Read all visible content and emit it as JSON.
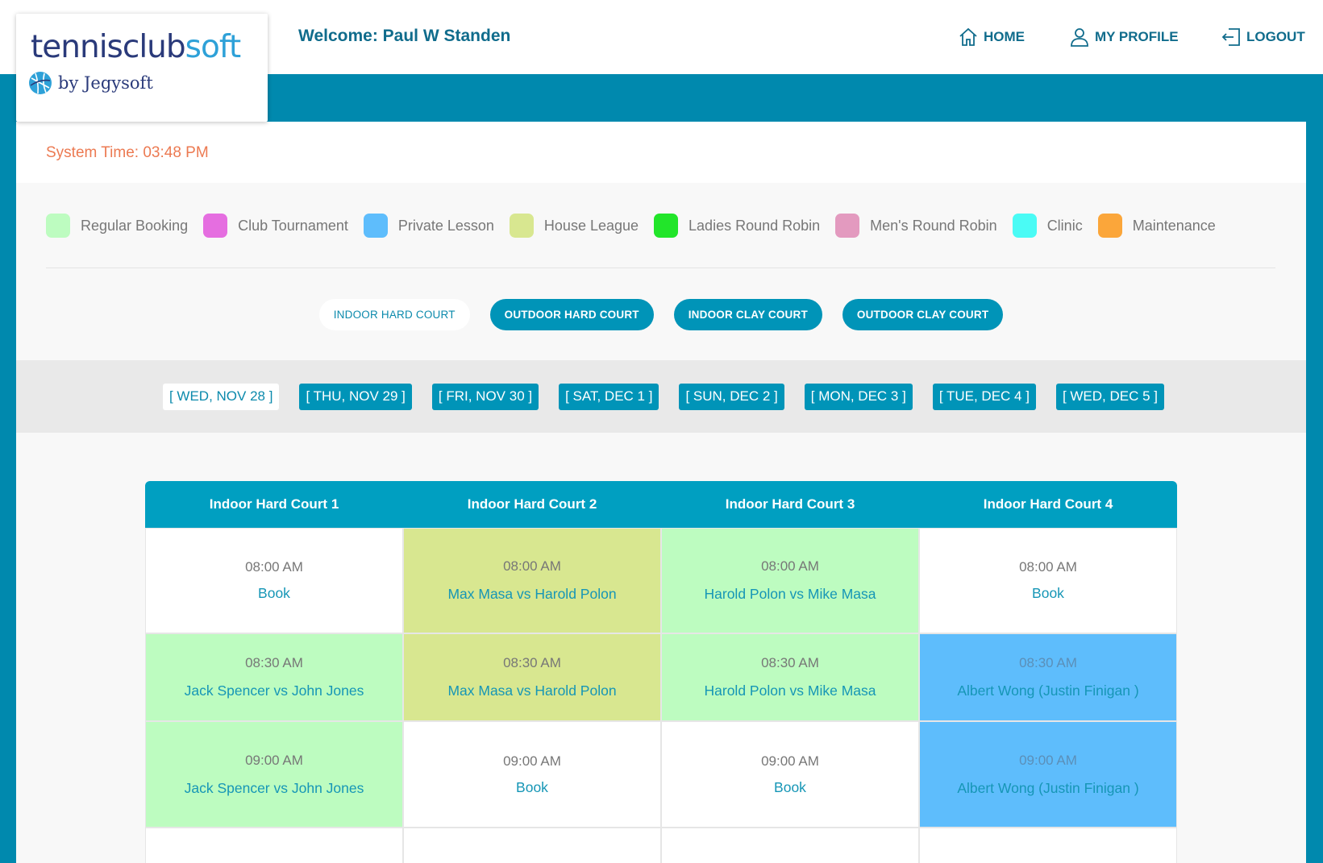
{
  "logo": {
    "word1": "tennis",
    "word2": "club",
    "word3": "soft",
    "by": "by Jegysoft"
  },
  "header": {
    "welcome": "Welcome: Paul W Standen"
  },
  "nav": {
    "home": "HOME",
    "profile": "MY PROFILE",
    "logout": "LOGOUT"
  },
  "system_time": "System Time: 03:48 PM",
  "legend": [
    {
      "label": "Regular Booking",
      "color": "#bdfcc0"
    },
    {
      "label": "Club Tournament",
      "color": "#e56ee0"
    },
    {
      "label": "Private Lesson",
      "color": "#5ebdfc"
    },
    {
      "label": "House League",
      "color": "#d8e790"
    },
    {
      "label": "Ladies Round Robin",
      "color": "#22e52a"
    },
    {
      "label": "Men's Round Robin",
      "color": "#e39abf"
    },
    {
      "label": "Clinic",
      "color": "#4afbf5"
    },
    {
      "label": "Maintenance",
      "color": "#fba63a"
    }
  ],
  "court_tabs": [
    "INDOOR HARD COURT",
    "OUTDOOR HARD COURT",
    "INDOOR CLAY COURT",
    "OUTDOOR CLAY COURT"
  ],
  "dates": [
    "[ WED, NOV 28 ]",
    "[ THU, NOV 29 ]",
    "[ FRI, NOV 30 ]",
    "[ SAT, DEC 1 ]",
    "[ SUN, DEC 2 ]",
    "[ MON, DEC 3 ]",
    "[ TUE, DEC 4 ]",
    "[ WED, DEC 5 ]"
  ],
  "courts": [
    "Indoor Hard Court 1",
    "Indoor Hard Court 2",
    "Indoor Hard Court 3",
    "Indoor Hard Court 4"
  ],
  "rows": [
    [
      {
        "time": "08:00 AM",
        "text": "Book"
      },
      {
        "time": "08:00 AM",
        "text": "Max Masa vs Harold Polon"
      },
      {
        "time": "08:00 AM",
        "text": "Harold Polon vs Mike Masa"
      },
      {
        "time": "08:00 AM",
        "text": "Book"
      }
    ],
    [
      {
        "time": "08:30 AM",
        "text": "Jack Spencer vs John Jones"
      },
      {
        "time": "08:30 AM",
        "text": "Max Masa vs Harold Polon"
      },
      {
        "time": "08:30 AM",
        "text": "Harold Polon vs Mike Masa"
      },
      {
        "time": "08:30 AM",
        "text": "Albert Wong (Justin Finigan )"
      }
    ],
    [
      {
        "time": "09:00 AM",
        "text": "Jack Spencer vs John Jones"
      },
      {
        "time": "09:00 AM",
        "text": "Book"
      },
      {
        "time": "09:00 AM",
        "text": "Book"
      },
      {
        "time": "09:00 AM",
        "text": "Albert Wong (Justin Finigan )"
      }
    ]
  ]
}
